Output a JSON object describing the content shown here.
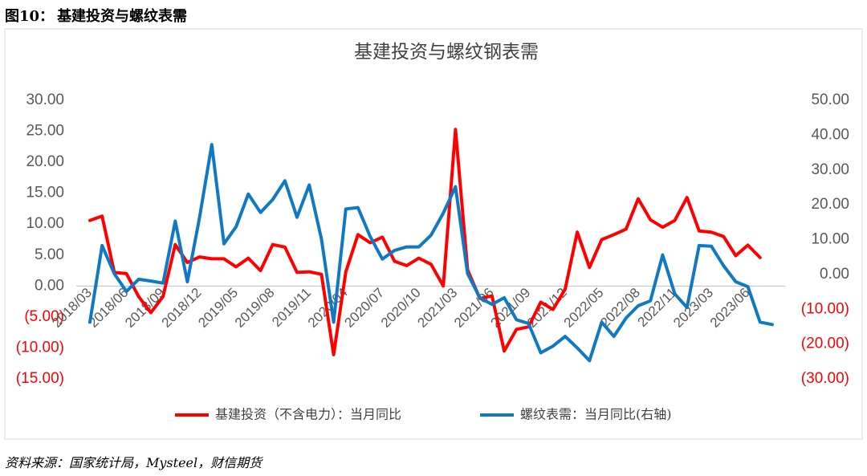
{
  "caption": {
    "label": "图10：",
    "title": "基建投资与螺纹表需"
  },
  "source": "资料来源：国家统计局，Mysteel，财信期货",
  "chart_data": {
    "type": "line",
    "title": "基建投资与螺纹钢表需",
    "categories": [
      "2018/03",
      null,
      null,
      "2018/06",
      null,
      null,
      "2018/09",
      null,
      null,
      "2018/12",
      null,
      null,
      "2019/05",
      null,
      null,
      "2019/08",
      null,
      null,
      "2019/11",
      null,
      null,
      "2020/04",
      null,
      null,
      "2020/07",
      null,
      null,
      "2020/10",
      null,
      null,
      "2021/03",
      null,
      null,
      "2021/06",
      null,
      null,
      "2021/09",
      null,
      null,
      "2021/12",
      null,
      null,
      "2022/05",
      null,
      null,
      "2022/08",
      null,
      null,
      "2022/11",
      null,
      null,
      "2023/03",
      null,
      null,
      "2023/06",
      null,
      null
    ],
    "series": [
      {
        "name": "基建投资（不含电力）：当月同比",
        "color": "#ff0000",
        "values": [
          10.6,
          11.3,
          2.2,
          2.0,
          -1.7,
          -4.3,
          -1.7,
          6.7,
          3.8,
          4.7,
          4.4,
          4.4,
          3.1,
          4.5,
          2.5,
          6.7,
          6.3,
          2.2,
          2.3,
          1.9,
          -11.1,
          2.3,
          8.3,
          7.0,
          7.9,
          4.0,
          3.3,
          4.5,
          3.5,
          0.0,
          25.3,
          2.6,
          -2.0,
          -1.6,
          -10.5,
          -7.0,
          -6.6,
          -2.6,
          -3.8,
          -0.5,
          8.7,
          3.0,
          7.5,
          8.3,
          9.2,
          14.1,
          10.7,
          9.5,
          10.6,
          14.3,
          8.9,
          8.7,
          8.0,
          4.9,
          6.6,
          4.6,
          null
        ]
      },
      {
        "name": "螺纹表需：当月同比(右轴)",
        "color": "#0f7ac3",
        "axis": "y2",
        "values": [
          -13.7,
          8.3,
          0.2,
          -4.9,
          -1.4,
          -1.9,
          -2.5,
          15.3,
          -2.1,
          16.4,
          37.3,
          8.8,
          13.7,
          23.1,
          17.8,
          21.5,
          26.9,
          16.4,
          25.7,
          10.2,
          -13.7,
          18.8,
          19.2,
          10.9,
          4.4,
          6.9,
          7.9,
          7.9,
          11.3,
          17.6,
          25.2,
          0.2,
          -6.7,
          -8.6,
          -6.7,
          -13.0,
          -14.1,
          -22.5,
          -20.6,
          -17.8,
          -21.1,
          -24.8,
          -13.7,
          -17.8,
          -12.5,
          -9.0,
          -7.6,
          5.6,
          -5.6,
          -9.5,
          8.3,
          8.1,
          2.5,
          -2.1,
          -3.5,
          -13.7,
          -14.4
        ]
      }
    ],
    "ylim": [
      -15,
      30
    ],
    "yticks": [
      {
        "value": 30,
        "label": "30.00"
      },
      {
        "value": 25,
        "label": "25.00"
      },
      {
        "value": 20,
        "label": "20.00"
      },
      {
        "value": 15,
        "label": "15.00"
      },
      {
        "value": 10,
        "label": "10.00"
      },
      {
        "value": 5,
        "label": "5.00"
      },
      {
        "value": 0,
        "label": "0.00"
      },
      {
        "value": -5,
        "label": "(5.00)"
      },
      {
        "value": -10,
        "label": "(10.00)"
      },
      {
        "value": -15,
        "label": "(15.00)"
      }
    ],
    "y2lim": [
      -30,
      50
    ],
    "y2ticks": [
      {
        "value": 50,
        "label": "50.00"
      },
      {
        "value": 40,
        "label": "40.00"
      },
      {
        "value": 30,
        "label": "30.00"
      },
      {
        "value": 20,
        "label": "20.00"
      },
      {
        "value": 10,
        "label": "10.00"
      },
      {
        "value": 0,
        "label": "0.00"
      },
      {
        "value": -10,
        "label": "(10.00)"
      },
      {
        "value": -20,
        "label": "(20.00)"
      },
      {
        "value": -30,
        "label": "(30.00)"
      }
    ],
    "negative_tick_color": "#ff0000",
    "legend": "bottom"
  }
}
